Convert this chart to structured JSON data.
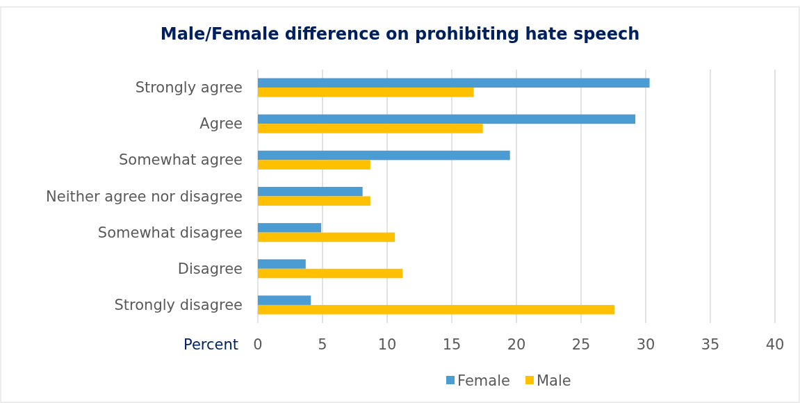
{
  "chart_data": {
    "type": "bar",
    "orientation": "horizontal",
    "title": "Male/Female difference on prohibiting hate speech",
    "xlabel": "Percent",
    "categories": [
      "Strongly agree",
      "Agree",
      "Somewhat agree",
      "Neither agree nor disagree",
      "Somewhat disagree",
      "Disagree",
      "Strongly disagree"
    ],
    "series": [
      {
        "name": "Female",
        "color": "#4a9cd3",
        "values": [
          30.3,
          29.2,
          19.5,
          8.1,
          4.9,
          3.7,
          4.1
        ]
      },
      {
        "name": "Male",
        "color": "#ffc000",
        "values": [
          16.7,
          17.4,
          8.7,
          8.7,
          10.6,
          11.2,
          27.6
        ]
      }
    ],
    "xlim": [
      0,
      40
    ],
    "xticks": [
      0,
      5,
      10,
      15,
      20,
      25,
      30,
      35,
      40
    ],
    "grid": "x",
    "legend": "bottom"
  }
}
